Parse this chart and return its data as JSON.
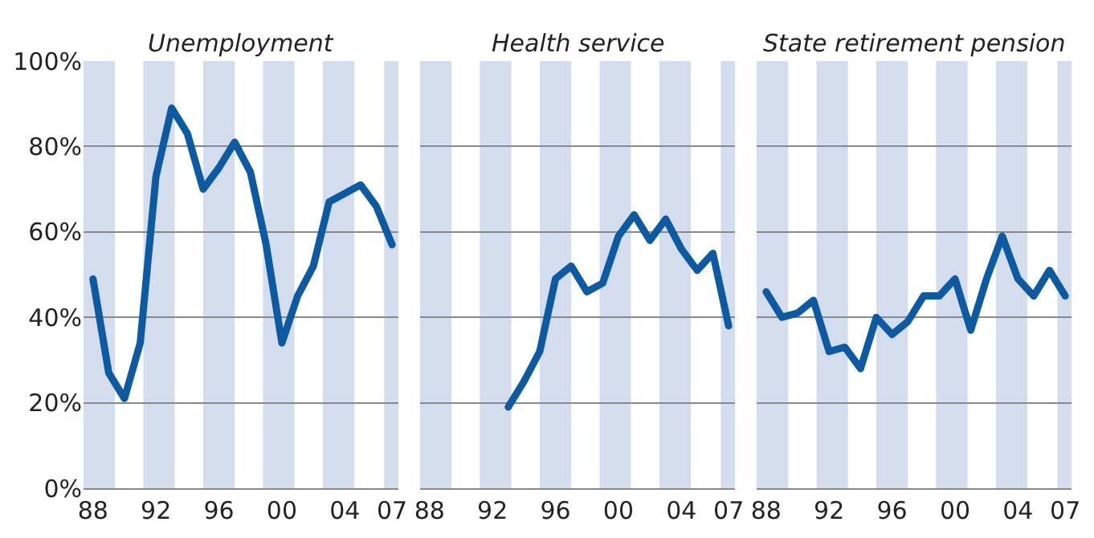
{
  "chart_data": [
    {
      "type": "line",
      "title": "Unemployment",
      "x": [
        1988,
        1989,
        1990,
        1991,
        1992,
        1993,
        1994,
        1995,
        1996,
        1997,
        1998,
        1999,
        2000,
        2001,
        2002,
        2003,
        2004,
        2005,
        2006,
        2007
      ],
      "values": [
        49,
        27,
        21,
        34,
        73,
        89,
        83,
        70,
        75,
        81,
        74,
        57,
        34,
        45,
        52,
        67,
        69,
        71,
        66,
        57
      ],
      "color": "#0b5aa2",
      "xlim": [
        1987.4,
        2007.4
      ],
      "xticks": [
        {
          "value": 1988,
          "label": "88"
        },
        {
          "value": 1992,
          "label": "92"
        },
        {
          "value": 1996,
          "label": "96"
        },
        {
          "value": 2000,
          "label": "00"
        },
        {
          "value": 2004,
          "label": "04"
        },
        {
          "value": 2007,
          "label": "07"
        }
      ],
      "ylim": [
        0,
        100
      ],
      "yticks": [
        {
          "value": 0,
          "label": "0%"
        },
        {
          "value": 20,
          "label": "20%"
        },
        {
          "value": 40,
          "label": "40%"
        },
        {
          "value": 60,
          "label": "60%"
        },
        {
          "value": 80,
          "label": "80%"
        },
        {
          "value": 100,
          "label": "100%"
        }
      ],
      "grid": "y",
      "bands": [
        {
          "axis": "x",
          "from": 1987.4,
          "to": 1989.4,
          "color": "#d4ddee"
        },
        {
          "axis": "x",
          "from": 1991.2,
          "to": 1993.2,
          "color": "#d4ddee"
        },
        {
          "axis": "x",
          "from": 1995,
          "to": 1997,
          "color": "#d4ddee"
        },
        {
          "axis": "x",
          "from": 1998.8,
          "to": 2000.8,
          "color": "#d4ddee"
        },
        {
          "axis": "x",
          "from": 2002.6,
          "to": 2004.6,
          "color": "#d4ddee"
        },
        {
          "axis": "x",
          "from": 2006.5,
          "to": 2007.4,
          "color": "#d4ddee"
        }
      ]
    },
    {
      "type": "line",
      "title": "Health service",
      "x": [
        1993,
        1994,
        1995,
        1996,
        1997,
        1998,
        1999,
        2000,
        2001,
        2002,
        2003,
        2004,
        2005,
        2006,
        2007
      ],
      "values": [
        19,
        25,
        32,
        49,
        52,
        46,
        48,
        59,
        64,
        58,
        63,
        56,
        51,
        55,
        38
      ],
      "color": "#0b5aa2",
      "xlim": [
        1987.4,
        2007.4
      ],
      "xticks": [
        {
          "value": 1988,
          "label": "88"
        },
        {
          "value": 1992,
          "label": "92"
        },
        {
          "value": 1996,
          "label": "96"
        },
        {
          "value": 2000,
          "label": "00"
        },
        {
          "value": 2004,
          "label": "04"
        },
        {
          "value": 2007,
          "label": "07"
        }
      ],
      "ylim": [
        0,
        100
      ],
      "yticks": [
        0,
        20,
        40,
        60,
        80,
        100
      ],
      "grid": "y",
      "tick_labels": "x",
      "bands": [
        {
          "axis": "x",
          "from": 1987.4,
          "to": 1989.4,
          "color": "#d4ddee"
        },
        {
          "axis": "x",
          "from": 1991.2,
          "to": 1993.2,
          "color": "#d4ddee"
        },
        {
          "axis": "x",
          "from": 1995,
          "to": 1997,
          "color": "#d4ddee"
        },
        {
          "axis": "x",
          "from": 1998.8,
          "to": 2000.8,
          "color": "#d4ddee"
        },
        {
          "axis": "x",
          "from": 2002.6,
          "to": 2004.6,
          "color": "#d4ddee"
        },
        {
          "axis": "x",
          "from": 2006.5,
          "to": 2007.4,
          "color": "#d4ddee"
        }
      ]
    },
    {
      "type": "line",
      "title": "State retirement pension",
      "x": [
        1988,
        1989,
        1990,
        1991,
        1992,
        1993,
        1994,
        1995,
        1996,
        1997,
        1998,
        1999,
        2000,
        2001,
        2002,
        2003,
        2004,
        2005,
        2006,
        2007
      ],
      "values": [
        46,
        40,
        41,
        44,
        32,
        33,
        28,
        40,
        36,
        39,
        45,
        45,
        49,
        37,
        49,
        59,
        49,
        45,
        51,
        45
      ],
      "color": "#0b5aa2",
      "xlim": [
        1987.4,
        2007.4
      ],
      "xticks": [
        {
          "value": 1988,
          "label": "88"
        },
        {
          "value": 1992,
          "label": "92"
        },
        {
          "value": 1996,
          "label": "96"
        },
        {
          "value": 2000,
          "label": "00"
        },
        {
          "value": 2004,
          "label": "04"
        },
        {
          "value": 2007,
          "label": "07"
        }
      ],
      "ylim": [
        0,
        100
      ],
      "yticks": [
        0,
        20,
        40,
        60,
        80,
        100
      ],
      "grid": "y",
      "tick_labels": "x",
      "bands": [
        {
          "axis": "x",
          "from": 1987.4,
          "to": 1989.4,
          "color": "#d4ddee"
        },
        {
          "axis": "x",
          "from": 1991.2,
          "to": 1993.2,
          "color": "#d4ddee"
        },
        {
          "axis": "x",
          "from": 1995,
          "to": 1997,
          "color": "#d4ddee"
        },
        {
          "axis": "x",
          "from": 1998.8,
          "to": 2000.8,
          "color": "#d4ddee"
        },
        {
          "axis": "x",
          "from": 2002.6,
          "to": 2004.6,
          "color": "#d4ddee"
        },
        {
          "axis": "x",
          "from": 2006.5,
          "to": 2007.4,
          "color": "#d4ddee"
        }
      ]
    }
  ]
}
